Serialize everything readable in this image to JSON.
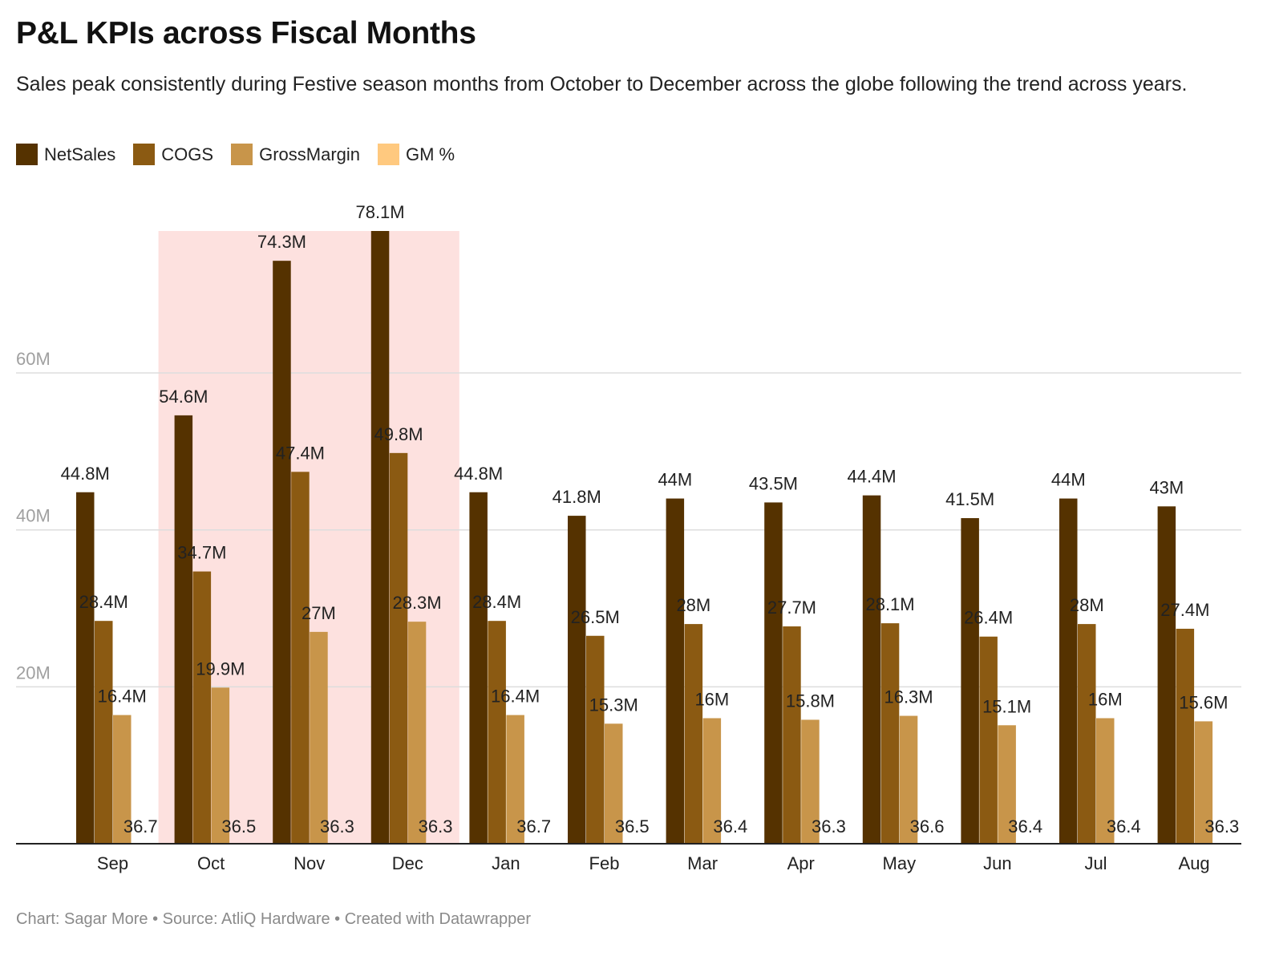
{
  "title": "P&L KPIs across Fiscal Months",
  "subtitle": "Sales peak consistently during Festive season months from October to December across the globe following the trend across years.",
  "footer": "Chart: Sagar More • Source: AtliQ Hardware • Created with Datawrapper",
  "colors": {
    "NetSales": "#553200",
    "COGS": "#8b5a12",
    "GrossMargin": "#c8954a",
    "GM %": "#ffc97f",
    "highlight": "#fde1df",
    "grid": "#dddddd",
    "axis": "#222222",
    "tick": "#a0a0a0"
  },
  "chart_data": {
    "type": "bar",
    "categories": [
      "Sep",
      "Oct",
      "Nov",
      "Dec",
      "Jan",
      "Feb",
      "Mar",
      "Apr",
      "May",
      "Jun",
      "Jul",
      "Aug"
    ],
    "series": [
      {
        "name": "NetSales",
        "values": [
          44.8,
          54.6,
          74.3,
          78.1,
          44.8,
          41.8,
          44,
          43.5,
          44.4,
          41.5,
          44,
          43
        ],
        "labels": [
          "44.8M",
          "54.6M",
          "74.3M",
          "78.1M",
          "44.8M",
          "41.8M",
          "44M",
          "43.5M",
          "44.4M",
          "41.5M",
          "44M",
          "43M"
        ]
      },
      {
        "name": "COGS",
        "values": [
          28.4,
          34.7,
          47.4,
          49.8,
          28.4,
          26.5,
          28,
          27.7,
          28.1,
          26.4,
          28,
          27.4
        ],
        "labels": [
          "28.4M",
          "34.7M",
          "47.4M",
          "49.8M",
          "28.4M",
          "26.5M",
          "28M",
          "27.7M",
          "28.1M",
          "26.4M",
          "28M",
          "27.4M"
        ]
      },
      {
        "name": "GrossMargin",
        "values": [
          16.4,
          19.9,
          27,
          28.3,
          16.4,
          15.3,
          16,
          15.8,
          16.3,
          15.1,
          16,
          15.6
        ],
        "labels": [
          "16.4M",
          "19.9M",
          "27M",
          "28.3M",
          "16.4M",
          "15.3M",
          "16M",
          "15.8M",
          "16.3M",
          "15.1M",
          "16M",
          "15.6M"
        ]
      },
      {
        "name": "GM %",
        "values": [
          36.7,
          36.5,
          36.3,
          36.3,
          36.7,
          36.5,
          36.4,
          36.3,
          36.6,
          36.4,
          36.4,
          36.3
        ],
        "labels": [
          "36.7",
          "36.5",
          "36.3",
          "36.3",
          "36.7",
          "36.5",
          "36.4",
          "36.3",
          "36.6",
          "36.4",
          "36.4",
          "36.3"
        ]
      }
    ],
    "yticks": [
      20,
      40,
      60
    ],
    "ytick_labels": [
      "20M",
      "40M",
      "60M"
    ],
    "ylim": [
      0,
      78.1
    ],
    "highlight_range": [
      "Oct",
      "Dec"
    ],
    "grid": true,
    "legend_position": "top-left"
  }
}
